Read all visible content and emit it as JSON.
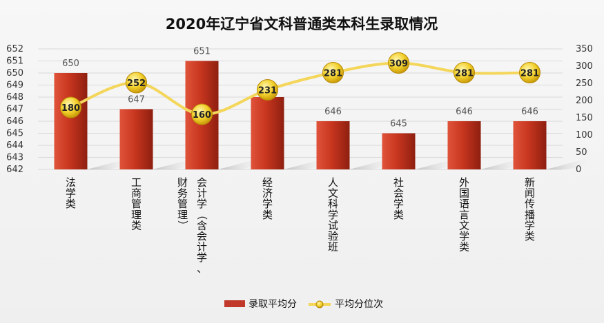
{
  "chart_data": {
    "type": "bar",
    "title": "2020年辽宁省文科普通类本科生录取情况",
    "categories": [
      "法学类",
      "工商管理类",
      "会计学（含会计学、财务管理）",
      "经济学类",
      "人文科学试验班",
      "社会学类",
      "外国语言文学类",
      "新闻传播学类"
    ],
    "series": [
      {
        "name": "录取平均分",
        "type": "bar",
        "axis": "left",
        "values": [
          650,
          647,
          651,
          648,
          646,
          645,
          646,
          646
        ],
        "color": "#c0392b"
      },
      {
        "name": "平均分位次",
        "type": "line",
        "axis": "right",
        "values": [
          180,
          252,
          160,
          231,
          281,
          309,
          281,
          281
        ],
        "color": "#f5d76e"
      }
    ],
    "left_axis": {
      "ylim": [
        642,
        652
      ],
      "ticks": [
        642,
        643,
        644,
        645,
        646,
        647,
        648,
        649,
        650,
        651,
        652
      ]
    },
    "right_axis": {
      "ylim": [
        0,
        350
      ],
      "ticks": [
        0,
        50,
        100,
        150,
        200,
        250,
        300,
        350
      ]
    },
    "grid": true,
    "legend_position": "bottom"
  }
}
